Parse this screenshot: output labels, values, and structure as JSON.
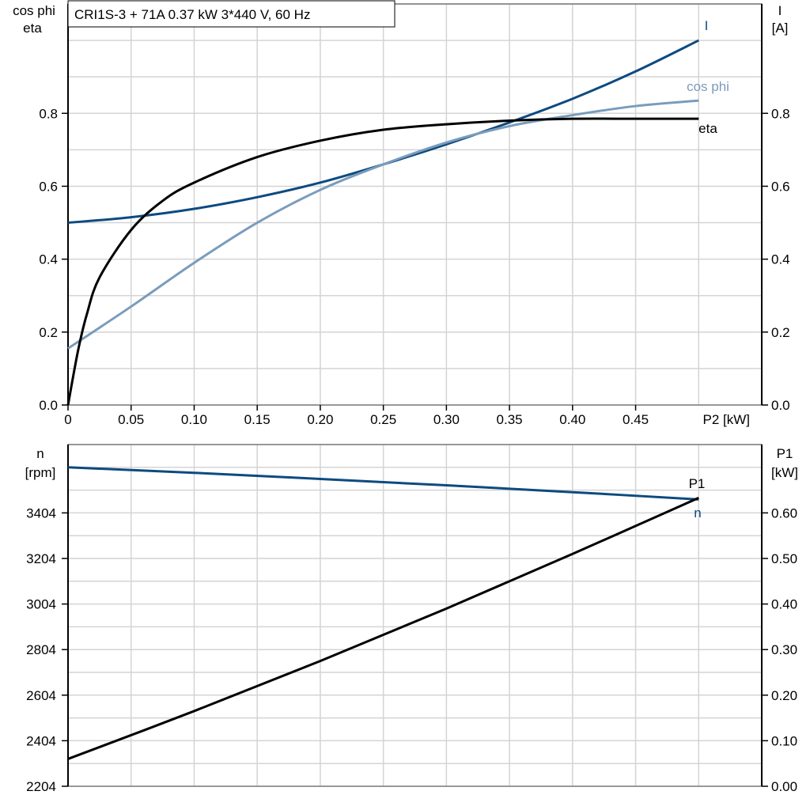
{
  "title": "CRI1S-3 + 71A   0.37 kW   3*440 V, 60 Hz",
  "chart_data": [
    {
      "type": "line",
      "xlabel": "P2 [kW]",
      "xlim": [
        0,
        0.55
      ],
      "x_ticks": [
        "0",
        "0.05",
        "0.10",
        "0.15",
        "0.20",
        "0.25",
        "0.30",
        "0.35",
        "0.40",
        "0.45"
      ],
      "ylabel_left": [
        "cos phi",
        "eta"
      ],
      "ylabel_right": [
        "I",
        "[A]"
      ],
      "ylim": [
        0,
        1.1
      ],
      "y_ticks": [
        "0.0",
        "0.2",
        "0.4",
        "0.6",
        "0.8"
      ],
      "grid": true,
      "series": [
        {
          "name": "I",
          "color": "#0d4a80",
          "axis": "right",
          "x": [
            0,
            0.05,
            0.1,
            0.15,
            0.2,
            0.25,
            0.3,
            0.35,
            0.4,
            0.45,
            0.5
          ],
          "y": [
            0.5,
            0.515,
            0.538,
            0.57,
            0.61,
            0.66,
            0.715,
            0.775,
            0.84,
            0.915,
            1.0
          ]
        },
        {
          "name": "cos phi",
          "color": "#7a9cbc",
          "axis": "left",
          "x": [
            0,
            0.05,
            0.1,
            0.15,
            0.2,
            0.25,
            0.3,
            0.35,
            0.4,
            0.45,
            0.5
          ],
          "y": [
            0.155,
            0.27,
            0.39,
            0.5,
            0.59,
            0.66,
            0.72,
            0.765,
            0.795,
            0.82,
            0.835
          ]
        },
        {
          "name": "eta",
          "color": "#000000",
          "axis": "left",
          "x": [
            0,
            0.008,
            0.015,
            0.025,
            0.05,
            0.075,
            0.1,
            0.15,
            0.2,
            0.25,
            0.3,
            0.35,
            0.4,
            0.45,
            0.5
          ],
          "y": [
            0,
            0.15,
            0.25,
            0.35,
            0.48,
            0.56,
            0.61,
            0.68,
            0.725,
            0.755,
            0.77,
            0.78,
            0.785,
            0.785,
            0.785
          ]
        }
      ]
    },
    {
      "type": "line",
      "xlim": [
        0,
        0.55
      ],
      "ylabel_left": [
        "n",
        "[rpm]"
      ],
      "ylabel_right": [
        "P1",
        "[kW]"
      ],
      "ylim_left": [
        2204,
        3704
      ],
      "ylim_right": [
        0,
        0.75
      ],
      "y_ticks_left": [
        "2204",
        "2404",
        "2604",
        "2804",
        "3004",
        "3204",
        "3404"
      ],
      "y_ticks_right": [
        "0.00",
        "0.10",
        "0.20",
        "0.30",
        "0.40",
        "0.50",
        "0.60"
      ],
      "grid": true,
      "series": [
        {
          "name": "n",
          "color": "#0d4a80",
          "axis": "left",
          "x": [
            0,
            0.1,
            0.2,
            0.3,
            0.4,
            0.5
          ],
          "y": [
            3604,
            3580,
            3553,
            3525,
            3495,
            3463
          ]
        },
        {
          "name": "P1",
          "color": "#000000",
          "axis": "right",
          "x": [
            0,
            0.1,
            0.2,
            0.3,
            0.4,
            0.5
          ],
          "y": [
            0.06,
            0.165,
            0.275,
            0.39,
            0.51,
            0.633
          ]
        }
      ]
    }
  ]
}
